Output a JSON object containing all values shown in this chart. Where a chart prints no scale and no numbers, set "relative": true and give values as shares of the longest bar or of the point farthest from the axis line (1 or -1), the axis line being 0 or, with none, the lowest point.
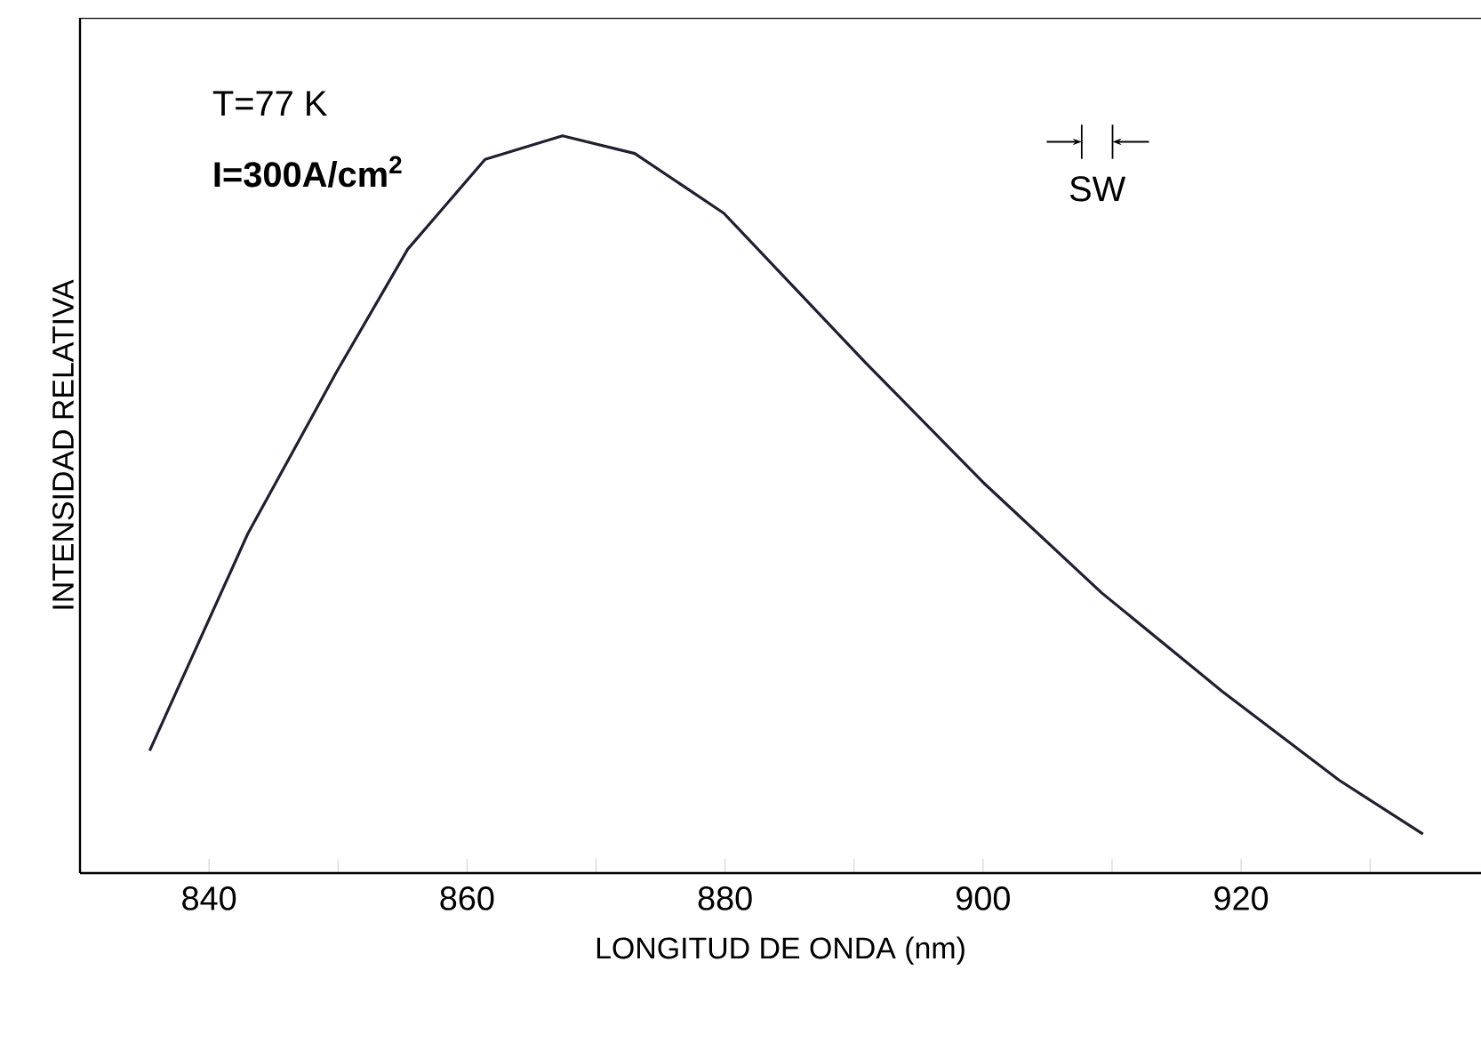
{
  "chart_data": {
    "type": "line",
    "relative": true,
    "xlabel": "LONGITUD DE ONDA (nm)",
    "ylabel": "INTENSIDAD RELATIVA",
    "annotations": [
      "T=77 K",
      "**I=300A/cm$^{2}$**",
      "SW"
    ],
    "xlim": [
      830,
      938.6
    ],
    "xticks": [
      840,
      {
        "value": 850,
        "label": null
      },
      860,
      {
        "value": 870,
        "label": null
      },
      880,
      {
        "value": 890,
        "label": null
      },
      900,
      {
        "value": 910,
        "label": null
      },
      920,
      {
        "value": 930,
        "label": null
      }
    ],
    "grid": false,
    "marker": "none",
    "line_style": "solid",
    "series": [
      {
        "color": "#1f1f2f",
        "x": [
          835.4,
          843.0,
          849.9,
          855.4,
          861.4,
          867.4,
          873.0,
          879.9,
          890.9,
          900.0,
          909.2,
          918.5,
          927.6,
          934.1
        ],
        "values": [
          0.166,
          0.46,
          0.68,
          0.846,
          0.968,
          1.0,
          0.976,
          0.895,
          0.692,
          0.53,
          0.38,
          0.247,
          0.126,
          0.053
        ]
      }
    ]
  }
}
